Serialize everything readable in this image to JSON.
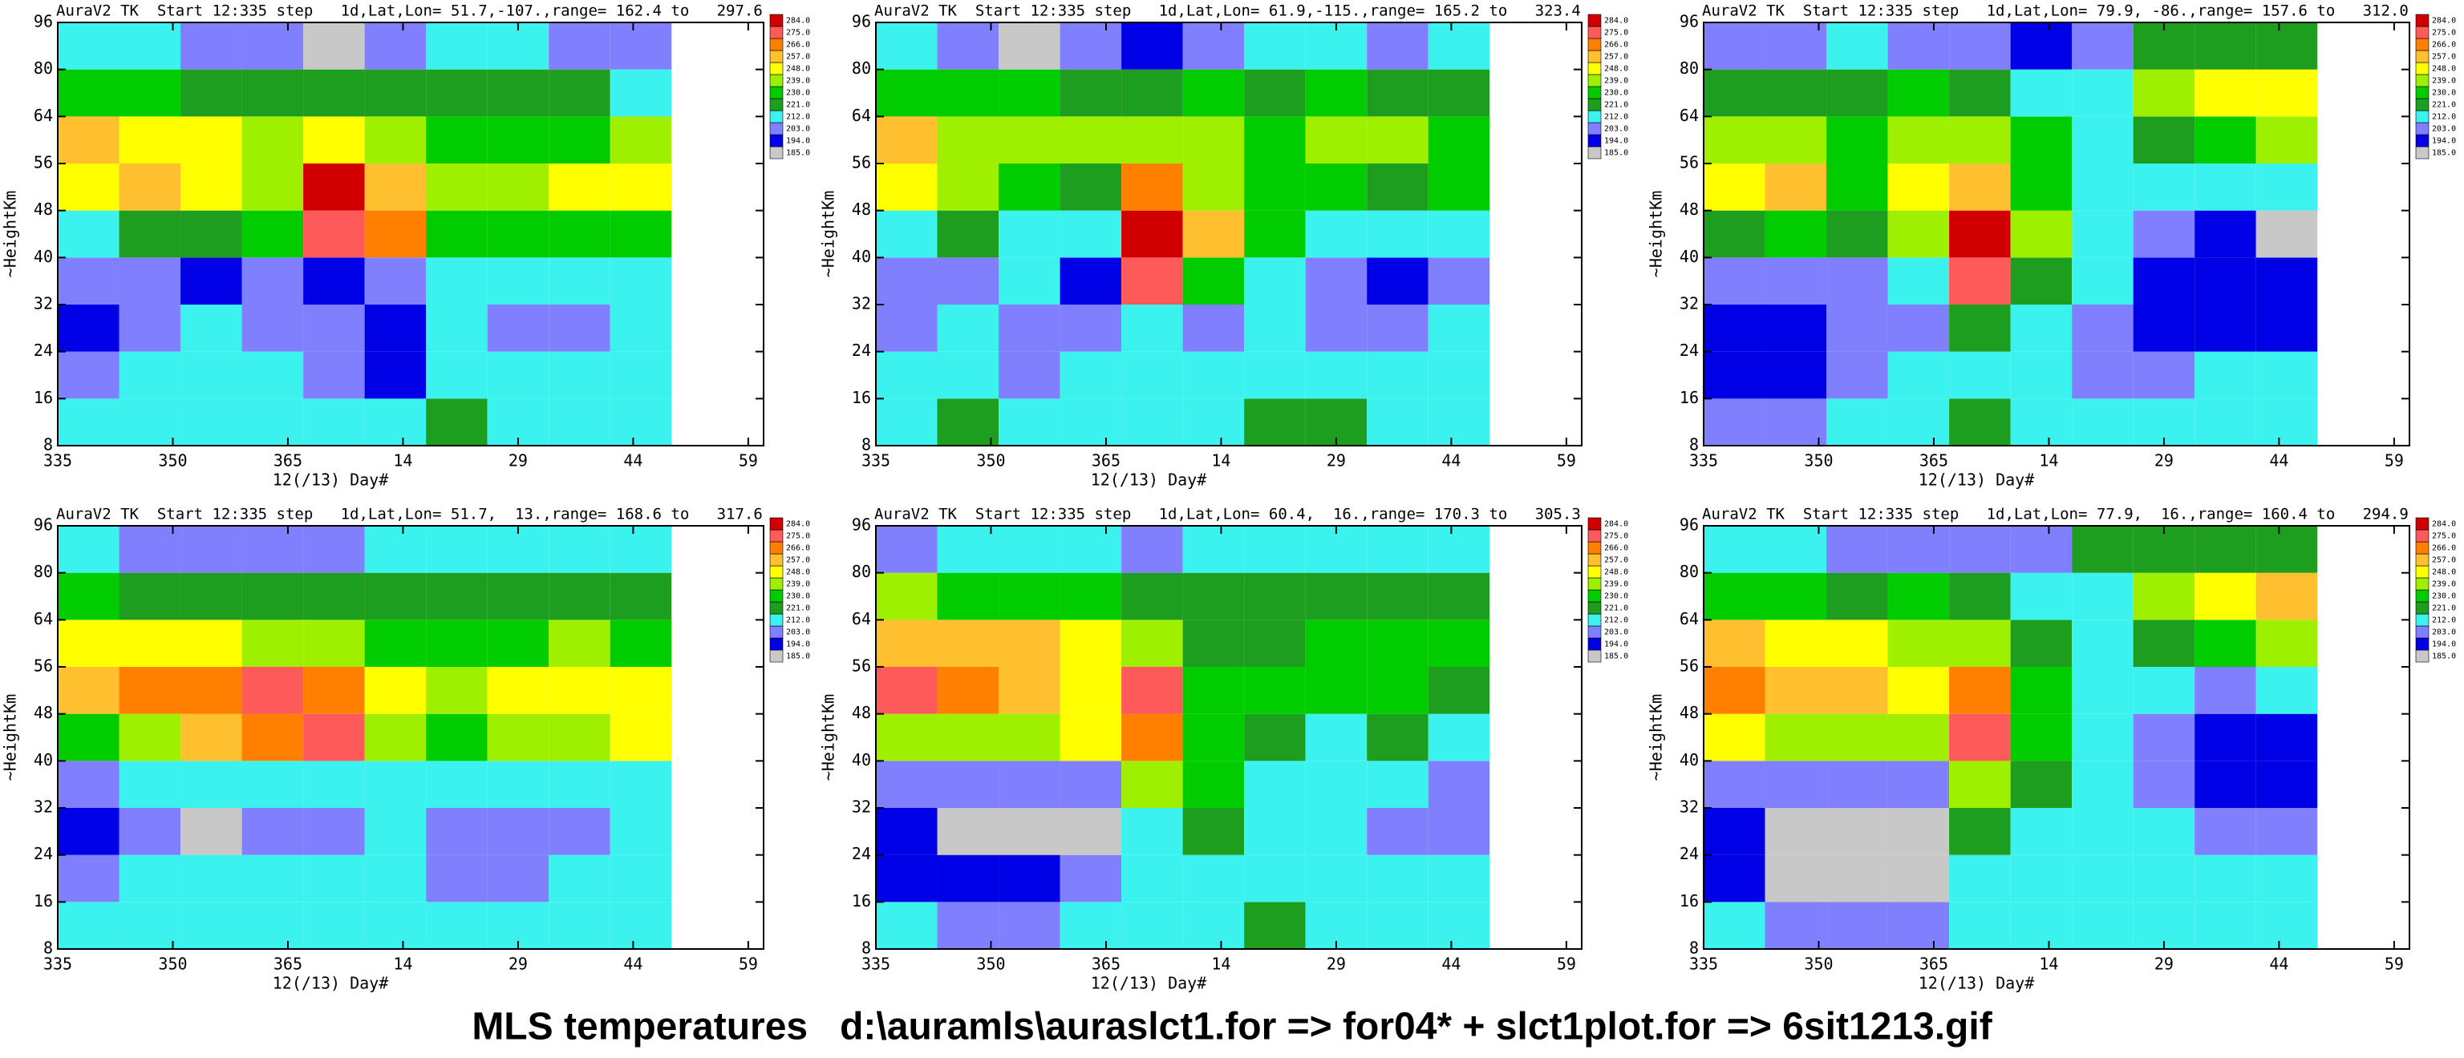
{
  "axes": {
    "xlabel": "12(/13) Day#",
    "ylabel": "~HeightKm",
    "xlim": [
      335,
      427
    ],
    "xticks": [
      335,
      350,
      365,
      {
        "value": 380,
        "label": "14"
      },
      {
        "value": 395,
        "label": "29"
      },
      {
        "value": 410,
        "label": "44"
      },
      {
        "value": 425,
        "label": "59"
      }
    ],
    "ylim": [
      8,
      96
    ],
    "yticks": [
      8,
      16,
      24,
      32,
      40,
      48,
      56,
      64,
      80,
      96
    ]
  },
  "colorbar": {
    "levels": [
      {
        "value": 185,
        "label": "185.0"
      },
      {
        "value": 194,
        "label": "194.0"
      },
      {
        "value": 203,
        "label": "203.0"
      },
      {
        "value": 212,
        "label": "212.0"
      },
      {
        "value": 221,
        "label": "221.0"
      },
      {
        "value": 230,
        "label": "230.0"
      },
      {
        "value": 239,
        "label": "239.0"
      },
      {
        "value": 248,
        "label": "248.0"
      },
      {
        "value": 257,
        "label": "257.0"
      },
      {
        "value": 266,
        "label": "266.0"
      },
      {
        "value": 275,
        "label": "275.0"
      },
      {
        "value": 284,
        "label": "284.0"
      }
    ],
    "colors": [
      "#c8c8c8",
      "#0000e6",
      "#8080ff",
      "#3cf2ee",
      "#1e9e1e",
      "#00cc00",
      "#9ef000",
      "#ffff00",
      "#ffc030",
      "#ff8000",
      "#ff5a5a",
      "#d00000"
    ]
  },
  "footer": "MLS temperatures   d:\\auramls\\auraslct1.for => for04* + slct1plot.for => 6sit1213.gif",
  "chart_data": [
    {
      "type": "contour",
      "title": "AuraV2 TK  Start 12:335 step   1d,Lat,Lon= 51.7,-107.,range= 162.4 to   297.6",
      "x": [
        335,
        343,
        351,
        359,
        367,
        375,
        383,
        391,
        399,
        407
      ],
      "y": [
        8,
        16,
        24,
        32,
        40,
        48,
        56,
        64,
        80
      ],
      "z": [
        [
          216,
          216,
          216,
          216,
          216,
          216,
          225,
          216,
          216,
          216
        ],
        [
          207,
          216,
          216,
          216,
          207,
          198,
          216,
          216,
          216,
          216
        ],
        [
          198,
          207,
          216,
          207,
          207,
          198,
          216,
          207,
          207,
          216
        ],
        [
          207,
          207,
          198,
          207,
          198,
          207,
          216,
          216,
          216,
          216
        ],
        [
          216,
          225,
          225,
          234,
          279,
          270,
          234,
          234,
          234,
          234
        ],
        [
          252,
          261,
          252,
          243,
          288,
          261,
          243,
          243,
          252,
          252
        ],
        [
          261,
          252,
          252,
          243,
          252,
          243,
          234,
          234,
          234,
          243
        ],
        [
          234,
          234,
          225,
          225,
          225,
          225,
          225,
          225,
          225,
          216
        ],
        [
          216,
          216,
          207,
          207,
          190,
          207,
          216,
          216,
          207,
          207
        ]
      ]
    },
    {
      "type": "contour",
      "title": "AuraV2 TK  Start 12:335 step   1d,Lat,Lon= 61.9,-115.,range= 165.2 to   323.4",
      "x": [
        335,
        343,
        351,
        359,
        367,
        375,
        383,
        391,
        399,
        407
      ],
      "y": [
        8,
        16,
        24,
        32,
        40,
        48,
        56,
        64,
        80
      ],
      "z": [
        [
          216,
          225,
          216,
          216,
          216,
          216,
          225,
          225,
          216,
          216
        ],
        [
          216,
          216,
          207,
          216,
          216,
          216,
          216,
          216,
          216,
          216
        ],
        [
          207,
          216,
          207,
          207,
          216,
          207,
          216,
          207,
          207,
          216
        ],
        [
          207,
          207,
          216,
          198,
          279,
          234,
          216,
          207,
          198,
          207
        ],
        [
          216,
          225,
          216,
          216,
          288,
          261,
          234,
          216,
          216,
          216
        ],
        [
          252,
          243,
          234,
          225,
          270,
          243,
          234,
          234,
          225,
          234
        ],
        [
          261,
          243,
          243,
          243,
          243,
          243,
          234,
          243,
          243,
          234
        ],
        [
          234,
          234,
          234,
          225,
          225,
          234,
          225,
          234,
          225,
          225
        ],
        [
          216,
          207,
          190,
          207,
          198,
          207,
          216,
          216,
          207,
          216
        ]
      ]
    },
    {
      "type": "contour",
      "title": "AuraV2 TK  Start 12:335 step   1d,Lat,Lon= 79.9, -86.,range= 157.6 to   312.0",
      "x": [
        335,
        343,
        351,
        359,
        367,
        375,
        383,
        391,
        399,
        407
      ],
      "y": [
        8,
        16,
        24,
        32,
        40,
        48,
        56,
        64,
        80
      ],
      "z": [
        [
          207,
          207,
          216,
          216,
          225,
          216,
          216,
          216,
          216,
          216
        ],
        [
          198,
          198,
          207,
          216,
          216,
          216,
          207,
          207,
          216,
          216
        ],
        [
          198,
          198,
          207,
          207,
          225,
          216,
          207,
          198,
          198,
          198
        ],
        [
          207,
          207,
          207,
          216,
          279,
          225,
          216,
          198,
          198,
          198
        ],
        [
          225,
          234,
          225,
          243,
          288,
          243,
          216,
          207,
          198,
          190
        ],
        [
          252,
          261,
          234,
          252,
          261,
          234,
          216,
          216,
          216,
          216
        ],
        [
          243,
          243,
          234,
          243,
          243,
          234,
          216,
          225,
          234,
          243
        ],
        [
          225,
          225,
          225,
          234,
          225,
          216,
          216,
          243,
          252,
          252
        ],
        [
          207,
          207,
          216,
          207,
          207,
          198,
          207,
          225,
          225,
          225
        ]
      ]
    },
    {
      "type": "contour",
      "title": "AuraV2 TK  Start 12:335 step   1d,Lat,Lon= 51.7,  13.,range= 168.6 to   317.6",
      "x": [
        335,
        343,
        351,
        359,
        367,
        375,
        383,
        391,
        399,
        407
      ],
      "y": [
        8,
        16,
        24,
        32,
        40,
        48,
        56,
        64,
        80
      ],
      "z": [
        [
          216,
          216,
          216,
          216,
          216,
          216,
          216,
          216,
          216,
          216
        ],
        [
          207,
          216,
          216,
          216,
          216,
          216,
          207,
          207,
          216,
          216
        ],
        [
          198,
          207,
          190,
          207,
          207,
          216,
          207,
          207,
          207,
          216
        ],
        [
          207,
          216,
          216,
          216,
          216,
          216,
          216,
          216,
          216,
          216
        ],
        [
          234,
          243,
          261,
          270,
          279,
          243,
          234,
          243,
          243,
          252
        ],
        [
          261,
          270,
          270,
          279,
          270,
          252,
          243,
          252,
          252,
          252
        ],
        [
          252,
          252,
          252,
          243,
          243,
          234,
          234,
          234,
          243,
          234
        ],
        [
          234,
          225,
          225,
          225,
          225,
          225,
          225,
          225,
          225,
          225
        ],
        [
          216,
          207,
          207,
          207,
          207,
          216,
          216,
          216,
          216,
          216
        ]
      ]
    },
    {
      "type": "contour",
      "title": "AuraV2 TK  Start 12:335 step   1d,Lat,Lon= 60.4,  16.,range= 170.3 to   305.3",
      "x": [
        335,
        343,
        351,
        359,
        367,
        375,
        383,
        391,
        399,
        407
      ],
      "y": [
        8,
        16,
        24,
        32,
        40,
        48,
        56,
        64,
        80
      ],
      "z": [
        [
          216,
          207,
          207,
          216,
          216,
          216,
          225,
          216,
          216,
          216
        ],
        [
          198,
          198,
          198,
          207,
          216,
          216,
          216,
          216,
          216,
          216
        ],
        [
          198,
          190,
          190,
          190,
          216,
          225,
          216,
          216,
          207,
          207
        ],
        [
          207,
          207,
          207,
          207,
          243,
          234,
          216,
          216,
          216,
          207
        ],
        [
          243,
          243,
          243,
          252,
          270,
          234,
          225,
          216,
          225,
          216
        ],
        [
          279,
          270,
          261,
          252,
          279,
          234,
          234,
          234,
          234,
          225
        ],
        [
          261,
          261,
          261,
          252,
          243,
          225,
          225,
          234,
          234,
          234
        ],
        [
          243,
          234,
          234,
          234,
          225,
          225,
          225,
          225,
          225,
          225
        ],
        [
          207,
          216,
          216,
          216,
          207,
          216,
          216,
          216,
          216,
          216
        ]
      ]
    },
    {
      "type": "contour",
      "title": "AuraV2 TK  Start 12:335 step   1d,Lat,Lon= 77.9,  16.,range= 160.4 to   294.9",
      "x": [
        335,
        343,
        351,
        359,
        367,
        375,
        383,
        391,
        399,
        407
      ],
      "y": [
        8,
        16,
        24,
        32,
        40,
        48,
        56,
        64,
        80
      ],
      "z": [
        [
          216,
          207,
          207,
          207,
          216,
          216,
          216,
          216,
          216,
          216
        ],
        [
          198,
          190,
          190,
          190,
          216,
          216,
          216,
          216,
          216,
          216
        ],
        [
          198,
          190,
          190,
          190,
          225,
          216,
          216,
          216,
          207,
          207
        ],
        [
          207,
          207,
          207,
          207,
          243,
          225,
          216,
          207,
          198,
          198
        ],
        [
          252,
          243,
          243,
          243,
          279,
          234,
          216,
          207,
          198,
          198
        ],
        [
          270,
          261,
          261,
          252,
          270,
          234,
          216,
          216,
          207,
          216
        ],
        [
          261,
          252,
          252,
          243,
          243,
          225,
          216,
          225,
          234,
          243
        ],
        [
          234,
          234,
          225,
          234,
          225,
          216,
          216,
          243,
          252,
          261
        ],
        [
          216,
          216,
          207,
          207,
          207,
          207,
          225,
          225,
          225,
          225
        ]
      ]
    }
  ]
}
